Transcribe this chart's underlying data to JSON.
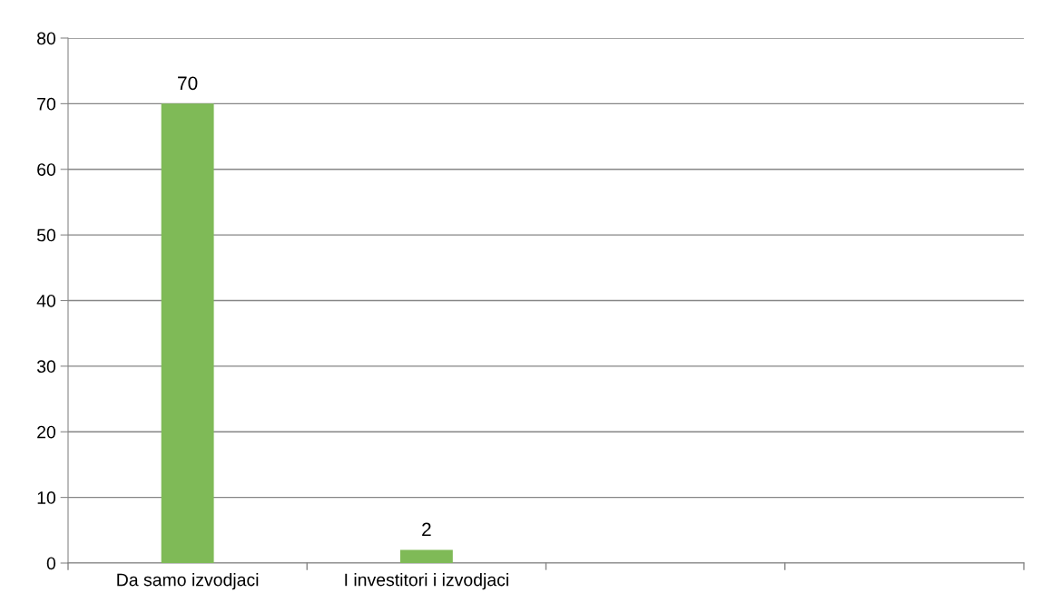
{
  "chart_data": {
    "type": "bar",
    "categories": [
      "Da samo izvodjaci",
      "I investitori i izvodjaci",
      null,
      null
    ],
    "values": [
      70,
      2,
      null,
      null
    ],
    "color": "#7fba57",
    "ylim": [
      0,
      80
    ],
    "yticks": [
      0,
      10,
      20,
      30,
      40,
      50,
      60,
      70,
      80
    ],
    "grid": "y",
    "data_labels": true,
    "legend": false
  }
}
